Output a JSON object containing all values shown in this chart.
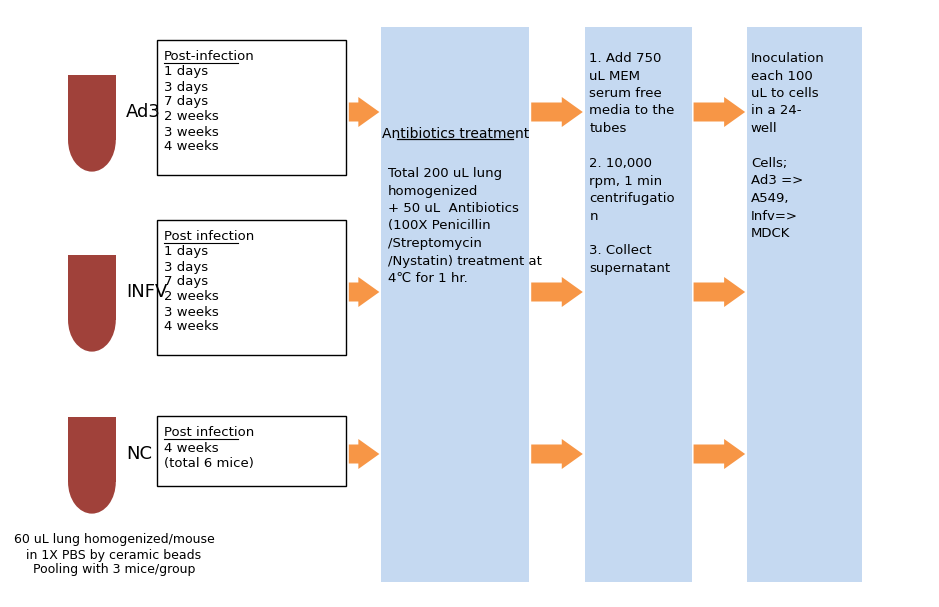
{
  "bg_color": "#ffffff",
  "blue_box_color": "#c5d9f1",
  "arrow_color": "#f79646",
  "tube_color": "#a0413a",
  "ad3_label": "Ad3",
  "infv_label": "INFV",
  "nc_label": "NC",
  "ad3_box_title": "Post-infection",
  "ad3_box_lines": [
    "1 days",
    "3 days",
    "7 days",
    "2 weeks",
    "3 weeks",
    "4 weeks"
  ],
  "infv_box_title": "Post infection",
  "infv_box_lines": [
    "1 days",
    "3 days",
    "7 days",
    "2 weeks",
    "3 weeks",
    "4 weeks"
  ],
  "nc_box_title": "Post infection",
  "nc_box_lines": [
    "4 weeks",
    "(total 6 mice)"
  ],
  "bottom_text": "60 uL lung homogenized/mouse\nin 1X PBS by ceramic beads\nPooling with 3 mice/group",
  "col2_title": "Antibiotics treatment",
  "col2_text": "Total 200 uL lung\nhomogenized\n+ 50 uL  Antibiotics\n(100X Penicillin\n/Streptomycin\n/Nystatin) treatment at\n4℃ for 1 hr.",
  "col3_text": "1. Add 750\nuL MEM\nserum free\nmedia to the\ntubes\n\n2. 10,000\nrpm, 1 min\ncentrifugatio\nn\n\n3. Collect\nsupernatant",
  "col4_text": "Inoculation\neach 100\nuL to cells\nin a 24-\nwell\n\nCells;\nAd3 =>\nA549,\nInfv=>\nMDCK",
  "figsize": [
    9.39,
    6.07
  ],
  "dpi": 100
}
